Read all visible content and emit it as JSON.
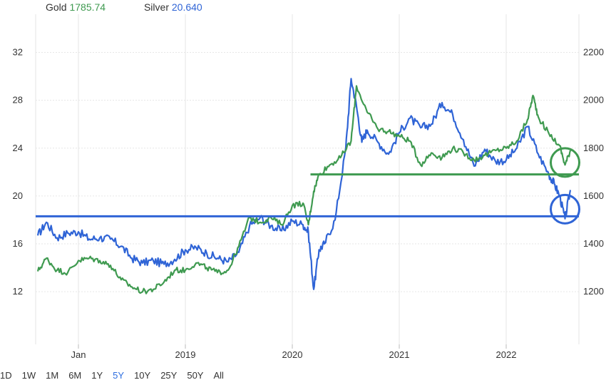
{
  "legend": {
    "gold_label": "Gold",
    "gold_value": "1785.74",
    "silver_label": "Silver",
    "silver_value": "20.640"
  },
  "ranges": [
    {
      "label": "1D",
      "active": false
    },
    {
      "label": "1W",
      "active": false
    },
    {
      "label": "1M",
      "active": false
    },
    {
      "label": "6M",
      "active": false
    },
    {
      "label": "1Y",
      "active": false
    },
    {
      "label": "5Y",
      "active": true
    },
    {
      "label": "10Y",
      "active": false
    },
    {
      "label": "25Y",
      "active": false
    },
    {
      "label": "50Y",
      "active": false
    },
    {
      "label": "All",
      "active": false
    }
  ],
  "colors": {
    "gold": "#3f9a50",
    "silver": "#2f64d6",
    "grid": "#e6e6e6"
  },
  "chart_data": {
    "type": "line",
    "title": "",
    "xlabel": "",
    "x_ticks": [
      {
        "label": "Jan",
        "x": 2018.0
      },
      {
        "label": "2019",
        "x": 2019.0
      },
      {
        "label": "2020",
        "x": 2020.0
      },
      {
        "label": "2021",
        "x": 2021.0
      },
      {
        "label": "2022",
        "x": 2022.0
      }
    ],
    "xlim": [
      2017.6,
      2022.68
    ],
    "y_left": {
      "label": "Silver",
      "ticks": [
        12,
        16,
        20,
        24,
        28,
        32
      ],
      "lim": [
        7.6,
        33.4
      ]
    },
    "y_right": {
      "label": "Gold",
      "ticks": [
        1200,
        1400,
        1600,
        1800,
        2000,
        2200
      ],
      "lim": [
        980,
        2270
      ]
    },
    "grid": true,
    "series": [
      {
        "name": "Silver",
        "axis": "left",
        "color": "#2f64d6",
        "x": [
          2017.62,
          2017.7,
          2017.8,
          2017.9,
          2018.0,
          2018.1,
          2018.2,
          2018.3,
          2018.4,
          2018.5,
          2018.6,
          2018.7,
          2018.8,
          2018.9,
          2019.0,
          2019.1,
          2019.2,
          2019.3,
          2019.4,
          2019.5,
          2019.6,
          2019.7,
          2019.8,
          2019.9,
          2020.0,
          2020.1,
          2020.15,
          2020.2,
          2020.25,
          2020.3,
          2020.4,
          2020.5,
          2020.55,
          2020.6,
          2020.65,
          2020.7,
          2020.8,
          2020.9,
          2021.0,
          2021.1,
          2021.2,
          2021.3,
          2021.4,
          2021.5,
          2021.6,
          2021.7,
          2021.8,
          2021.9,
          2022.0,
          2022.1,
          2022.2,
          2022.3,
          2022.4,
          2022.45,
          2022.5,
          2022.55,
          2022.6
        ],
        "y": [
          16.7,
          17.8,
          16.5,
          16.9,
          17.0,
          16.4,
          16.5,
          16.4,
          15.8,
          14.8,
          14.4,
          14.6,
          14.3,
          14.7,
          15.5,
          15.7,
          15.2,
          14.8,
          14.5,
          15.3,
          17.5,
          18.2,
          17.5,
          17.1,
          17.9,
          17.6,
          17.0,
          12.2,
          15.5,
          16.0,
          18.0,
          24.0,
          29.8,
          27.5,
          24.5,
          25.5,
          24.5,
          23.5,
          25.3,
          26.5,
          25.7,
          26.0,
          27.8,
          26.8,
          24.7,
          22.5,
          23.9,
          22.9,
          23.0,
          24.0,
          25.8,
          23.5,
          21.8,
          21.0,
          20.0,
          18.1,
          20.5
        ]
      },
      {
        "name": "Gold",
        "axis": "right",
        "color": "#3f9a50",
        "x": [
          2017.62,
          2017.7,
          2017.8,
          2017.9,
          2018.0,
          2018.1,
          2018.2,
          2018.3,
          2018.4,
          2018.5,
          2018.6,
          2018.7,
          2018.8,
          2018.9,
          2019.0,
          2019.1,
          2019.2,
          2019.3,
          2019.4,
          2019.5,
          2019.6,
          2019.7,
          2019.8,
          2019.9,
          2020.0,
          2020.1,
          2020.15,
          2020.2,
          2020.25,
          2020.35,
          2020.45,
          2020.55,
          2020.6,
          2020.7,
          2020.8,
          2020.9,
          2021.0,
          2021.1,
          2021.2,
          2021.3,
          2021.4,
          2021.5,
          2021.6,
          2021.7,
          2021.8,
          2021.9,
          2022.0,
          2022.1,
          2022.2,
          2022.25,
          2022.3,
          2022.4,
          2022.5,
          2022.55,
          2022.6
        ],
        "y": [
          1285,
          1340,
          1290,
          1280,
          1330,
          1340,
          1330,
          1310,
          1250,
          1220,
          1200,
          1210,
          1240,
          1290,
          1290,
          1320,
          1300,
          1280,
          1290,
          1390,
          1510,
          1490,
          1510,
          1480,
          1560,
          1570,
          1480,
          1620,
          1690,
          1730,
          1760,
          1830,
          2060,
          1950,
          1880,
          1870,
          1850,
          1830,
          1730,
          1780,
          1760,
          1800,
          1780,
          1750,
          1770,
          1790,
          1800,
          1830,
          1920,
          2020,
          1930,
          1860,
          1810,
          1730,
          1790
        ]
      }
    ],
    "reference_lines": [
      {
        "axis": "right",
        "value": 1690,
        "color": "#3f9a50",
        "x_from": 2020.17,
        "x_to": 2022.68
      },
      {
        "axis": "left",
        "value": 18.3,
        "color": "#2f64d6",
        "x_from": 2017.6,
        "x_to": 2022.68
      }
    ],
    "annotations": [
      {
        "shape": "circle",
        "color": "#3f9a50",
        "x": 2022.55,
        "y_right": 1740
      },
      {
        "shape": "circle",
        "color": "#2f64d6",
        "x": 2022.55,
        "y_left": 18.9
      }
    ]
  }
}
